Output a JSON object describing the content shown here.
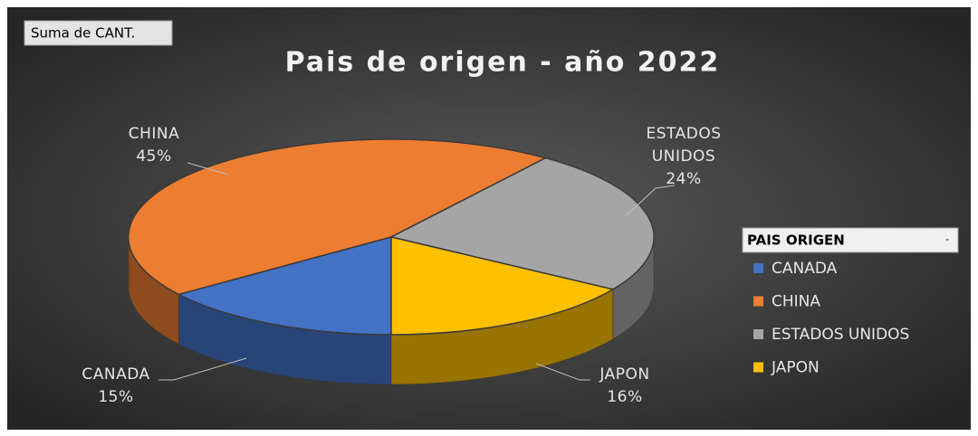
{
  "field_button": "Suma de CANT.",
  "chart_data": {
    "type": "pie",
    "title": "Pais de origen - año 2022",
    "categories": [
      "CANADA",
      "CHINA",
      "ESTADOS UNIDOS",
      "JAPON"
    ],
    "values": [
      15,
      45,
      24,
      16
    ],
    "value_labels": [
      "15%",
      "45%",
      "24%",
      "16%"
    ],
    "colors": [
      "#4472c4",
      "#ed7d31",
      "#a5a5a5",
      "#ffc000"
    ],
    "legend_title": "PAIS ORIGEN",
    "legend": "right"
  }
}
